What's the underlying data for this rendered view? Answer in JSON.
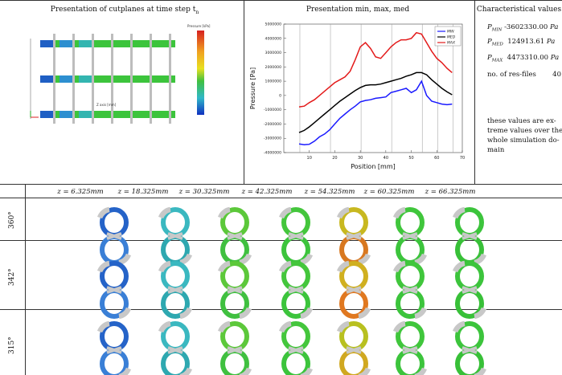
{
  "panel_titles": {
    "cutplanes": "Presentation of cutplanes at time step t",
    "cutplanes_sub": "n",
    "minmax": "Presentation min, max, med",
    "charvals": "Characteristical values"
  },
  "cutplane_axis_label": "Z axis [mm]",
  "colorbar": {
    "title": "Pressure [kPa]"
  },
  "char_values": {
    "pmin_label": "P",
    "pmin_sub": "MIN",
    "pmin_value": "-3602330.00",
    "pmin_unit": "Pa",
    "pmed_label": "P",
    "pmed_sub": "MED",
    "pmed_value": "124913.61",
    "pmed_unit": "Pa",
    "pmax_label": "P",
    "pmax_sub": "MAX",
    "pmax_value": "4473310.00",
    "pmax_unit": "Pa",
    "nres_label": "no. of res-files",
    "nres_value": "40"
  },
  "note_lines": [
    "these values are ex-",
    "treme values over the",
    "whole simulation do-",
    "main"
  ],
  "z_headers": [
    "z = 6.325mm",
    "z = 18.325mm",
    "z = 30.325mm",
    "z = 42.325mm",
    "z = 54.325mm",
    "z = 60.325mm",
    "z = 66.325mm"
  ],
  "angle_labels": [
    "360°",
    "342°",
    "315°"
  ],
  "colors": {
    "blue": "#1f5fc4",
    "cyan": "#33b5b0",
    "green": "#3cc43c",
    "yellow": "#d8c020",
    "orange": "#e07a1a",
    "gray": "#c8c8c8"
  },
  "chart_data": {
    "type": "line",
    "xlabel": "Position [mm]",
    "ylabel": "Pressure [Pa]",
    "xlim": [
      0,
      70
    ],
    "ylim": [
      -4000000,
      5000000
    ],
    "xticks": [
      10,
      20,
      30,
      40,
      50,
      60,
      70
    ],
    "yticks": [
      -4000000,
      -3000000,
      -2000000,
      -1000000,
      0,
      1000000,
      2000000,
      3000000,
      4000000,
      5000000
    ],
    "ytick_labels": [
      "-4000000",
      "-3000000",
      "-2000000",
      "-1000000",
      "0",
      "1000000",
      "2000000",
      "3000000",
      "4000000",
      "5000000"
    ],
    "vlines": [
      6.3,
      18.3,
      30.3,
      42.3,
      54.3,
      60.3,
      66.3
    ],
    "legend": [
      "MIN",
      "MED",
      "MAX"
    ],
    "series": [
      {
        "name": "MIN",
        "color": "#1a1aff",
        "x": [
          6,
          8,
          10,
          12,
          14,
          16,
          18,
          20,
          22,
          24,
          26,
          28,
          30,
          32,
          34,
          36,
          38,
          40,
          42,
          44,
          46,
          48,
          50,
          52,
          54,
          56,
          58,
          60,
          62,
          64,
          66
        ],
        "y": [
          -3400000,
          -3450000,
          -3420000,
          -3200000,
          -2900000,
          -2700000,
          -2400000,
          -2000000,
          -1600000,
          -1300000,
          -1000000,
          -750000,
          -450000,
          -350000,
          -300000,
          -200000,
          -150000,
          -100000,
          200000,
          300000,
          400000,
          500000,
          200000,
          400000,
          1000000,
          0,
          -400000,
          -500000,
          -600000,
          -650000,
          -600000
        ]
      },
      {
        "name": "MED",
        "color": "#000000",
        "x": [
          6,
          8,
          10,
          12,
          14,
          16,
          18,
          20,
          22,
          24,
          26,
          28,
          30,
          32,
          34,
          36,
          38,
          40,
          42,
          44,
          46,
          48,
          50,
          52,
          54,
          56,
          58,
          60,
          62,
          64,
          66
        ],
        "y": [
          -2600000,
          -2450000,
          -2200000,
          -1900000,
          -1600000,
          -1300000,
          -1000000,
          -700000,
          -400000,
          -150000,
          100000,
          350000,
          550000,
          700000,
          750000,
          750000,
          800000,
          900000,
          1000000,
          1100000,
          1200000,
          1350000,
          1450000,
          1600000,
          1600000,
          1450000,
          1100000,
          800000,
          500000,
          250000,
          50000
        ]
      },
      {
        "name": "MAX",
        "color": "#e31a1a",
        "x": [
          6,
          8,
          10,
          12,
          14,
          16,
          18,
          20,
          22,
          24,
          26,
          28,
          30,
          32,
          34,
          36,
          38,
          40,
          42,
          44,
          46,
          48,
          50,
          52,
          54,
          56,
          58,
          60,
          62,
          64,
          66
        ],
        "y": [
          -800000,
          -750000,
          -500000,
          -300000,
          0,
          300000,
          600000,
          900000,
          1100000,
          1300000,
          1700000,
          2500000,
          3400000,
          3700000,
          3300000,
          2700000,
          2600000,
          3000000,
          3400000,
          3700000,
          3900000,
          3900000,
          4000000,
          4400000,
          4300000,
          3700000,
          3100000,
          2600000,
          2300000,
          1900000,
          1600000
        ]
      }
    ]
  },
  "sections": [
    {
      "angle": "360°",
      "z": [
        "6.325",
        "18.325",
        "30.325",
        "42.325",
        "54.325",
        "60.325",
        "66.325"
      ],
      "colors": [
        [
          "#2563c8",
          "#3a7fd6"
        ],
        [
          "#3ab8c0",
          "#2ea8b0"
        ],
        [
          "#5cc83a",
          "#40c040"
        ],
        [
          "#44c63c",
          "#3cc43c"
        ],
        [
          "#c8b820",
          "#d87820"
        ],
        [
          "#40c63c",
          "#3cc43c"
        ],
        [
          "#3cc43c",
          "#38c038"
        ]
      ]
    },
    {
      "angle": "342°",
      "z": [
        "6.325",
        "18.325",
        "30.325",
        "42.325",
        "54.325",
        "60.325",
        "66.325"
      ],
      "colors": [
        [
          "#2563c8",
          "#3a7fd6"
        ],
        [
          "#3ab8c0",
          "#2ea8b0"
        ],
        [
          "#5cc83a",
          "#40c040"
        ],
        [
          "#44c63c",
          "#3cc43c"
        ],
        [
          "#d0b020",
          "#e07820"
        ],
        [
          "#40c63c",
          "#3cc43c"
        ],
        [
          "#3cc43c",
          "#38c038"
        ]
      ]
    },
    {
      "angle": "315°",
      "z": [
        "6.325",
        "18.325",
        "30.325",
        "42.325",
        "54.325",
        "60.325",
        "66.325"
      ],
      "colors": [
        [
          "#2563c8",
          "#3a7fd6"
        ],
        [
          "#3ab8c0",
          "#2ea8b0"
        ],
        [
          "#5cc83a",
          "#40c040"
        ],
        [
          "#44c63c",
          "#3cc43c"
        ],
        [
          "#b8c020",
          "#d0a820"
        ],
        [
          "#40c63c",
          "#3cc43c"
        ],
        [
          "#3cc43c",
          "#38c038"
        ]
      ]
    }
  ]
}
